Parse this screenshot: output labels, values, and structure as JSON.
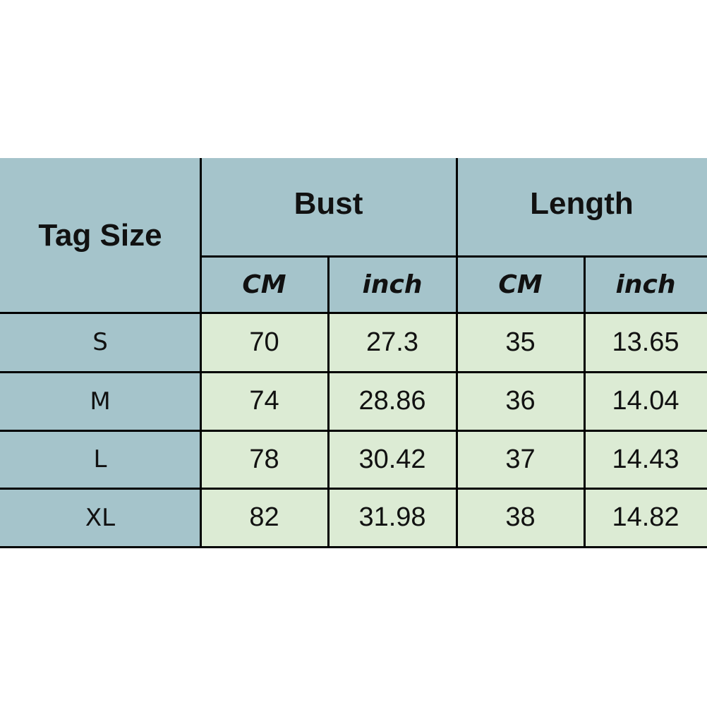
{
  "colors": {
    "header_bg": "#a5c4cb",
    "data_bg": "#dcebd4",
    "border": "#000000"
  },
  "headers": {
    "tag_size": "Tag Size",
    "bust": "Bust",
    "length": "Length",
    "bust_cm": "CM",
    "bust_inch": "inch",
    "length_cm": "CM",
    "length_inch": "inch"
  },
  "rows": [
    {
      "size": "S",
      "bust_cm": "70",
      "bust_inch": "27.3",
      "length_cm": "35",
      "length_inch": "13.65"
    },
    {
      "size": "M",
      "bust_cm": "74",
      "bust_inch": "28.86",
      "length_cm": "36",
      "length_inch": "14.04"
    },
    {
      "size": "L",
      "bust_cm": "78",
      "bust_inch": "30.42",
      "length_cm": "37",
      "length_inch": "14.43"
    },
    {
      "size": "XL",
      "bust_cm": "82",
      "bust_inch": "31.98",
      "length_cm": "38",
      "length_inch": "14.82"
    }
  ]
}
